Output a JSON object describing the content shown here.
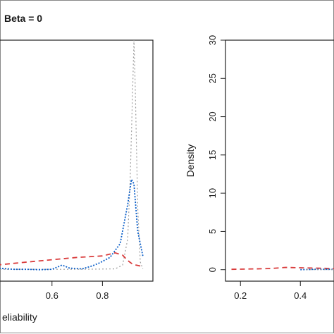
{
  "chart_data": [
    {
      "type": "line",
      "title": "Beta = 0",
      "xlabel": "eliability",
      "ylabel": "",
      "xlim": [
        0.38,
        1.0
      ],
      "ylim": [
        -1.5,
        30
      ],
      "x_ticks": [
        "0.6",
        "0.8"
      ],
      "x_tick_values": [
        0.6,
        0.8
      ],
      "grid": false,
      "series": [
        {
          "color": "#9e9e9e",
          "dash": "dotted",
          "points": [
            [
              0.38,
              0.05
            ],
            [
              0.7,
              0.05
            ],
            [
              0.85,
              0.1
            ],
            [
              0.88,
              0.6
            ],
            [
              0.9,
              4.0
            ],
            [
              0.91,
              12.0
            ],
            [
              0.92,
              24.0
            ],
            [
              0.925,
              30.0
            ],
            [
              0.93,
              24.0
            ],
            [
              0.94,
              8.0
            ],
            [
              0.95,
              1.0
            ],
            [
              0.96,
              0.1
            ]
          ]
        },
        {
          "color": "#0b5fc9",
          "dash": "dotted-dense",
          "points": [
            [
              0.38,
              0.2
            ],
            [
              0.45,
              0.05
            ],
            [
              0.5,
              0.05
            ],
            [
              0.55,
              0.0
            ],
            [
              0.6,
              0.05
            ],
            [
              0.64,
              0.6
            ],
            [
              0.67,
              0.2
            ],
            [
              0.72,
              0.1
            ],
            [
              0.76,
              0.5
            ],
            [
              0.79,
              0.9
            ],
            [
              0.83,
              1.6
            ],
            [
              0.87,
              3.4
            ],
            [
              0.9,
              8.5
            ],
            [
              0.915,
              11.8
            ],
            [
              0.925,
              11.2
            ],
            [
              0.94,
              5.0
            ],
            [
              0.96,
              1.8
            ]
          ]
        },
        {
          "color": "#d93b3b",
          "dash": "dashed",
          "points": [
            [
              0.38,
              0.6
            ],
            [
              0.5,
              1.0
            ],
            [
              0.6,
              1.3
            ],
            [
              0.7,
              1.6
            ],
            [
              0.8,
              1.8
            ],
            [
              0.85,
              2.2
            ],
            [
              0.88,
              1.9
            ],
            [
              0.9,
              1.2
            ],
            [
              0.92,
              0.7
            ],
            [
              0.96,
              0.4
            ]
          ]
        }
      ]
    },
    {
      "type": "line",
      "title": "",
      "xlabel": "",
      "ylabel": "Density",
      "xlim": [
        0.15,
        0.55
      ],
      "ylim": [
        -1.5,
        30
      ],
      "x_ticks": [
        "0.2",
        "0.4"
      ],
      "x_tick_values": [
        0.2,
        0.4
      ],
      "y_ticks": [
        "0",
        "5",
        "10",
        "15",
        "20",
        "25",
        "30"
      ],
      "y_tick_values": [
        0,
        5,
        10,
        15,
        20,
        25,
        30
      ],
      "grid": false,
      "series": [
        {
          "color": "#d93b3b",
          "dash": "dashed",
          "points": [
            [
              0.17,
              0.05
            ],
            [
              0.25,
              0.1
            ],
            [
              0.3,
              0.15
            ],
            [
              0.35,
              0.3
            ],
            [
              0.4,
              0.25
            ],
            [
              0.45,
              0.2
            ],
            [
              0.55,
              0.1
            ]
          ]
        },
        {
          "color": "#0b5fc9",
          "dash": "dotted-dense",
          "points": [
            [
              0.4,
              0.0
            ],
            [
              0.45,
              0.05
            ],
            [
              0.5,
              0.05
            ],
            [
              0.55,
              0.02
            ]
          ]
        },
        {
          "color": "#9e9e9e",
          "dash": "dotted",
          "points": [
            [
              0.42,
              0.01
            ],
            [
              0.55,
              0.01
            ]
          ]
        }
      ]
    }
  ]
}
